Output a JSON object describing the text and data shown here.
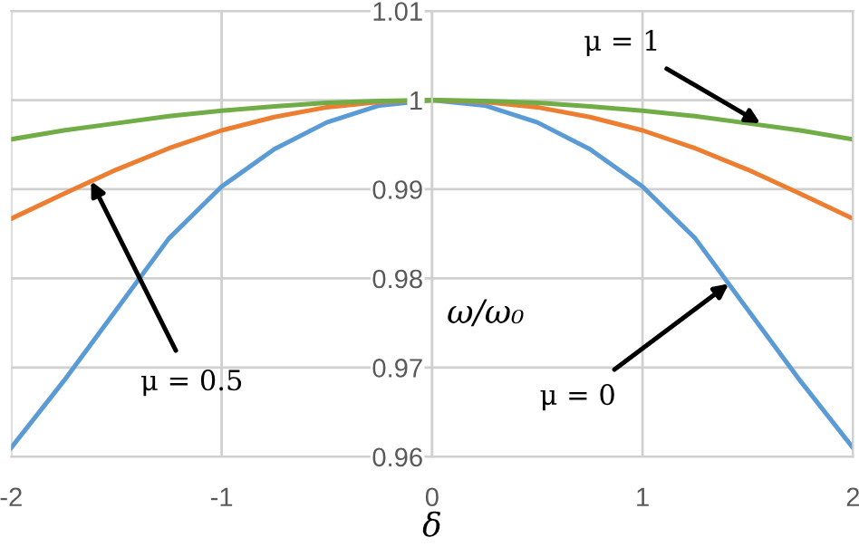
{
  "chart_data": {
    "type": "line",
    "xlabel": "δ",
    "ylabel": "ω/ω₀",
    "x": [
      -2,
      -1.75,
      -1.5,
      -1.25,
      -1,
      -0.75,
      -0.5,
      -0.25,
      0,
      0.25,
      0.5,
      0.75,
      1,
      1.25,
      1.5,
      1.75,
      2
    ],
    "series": [
      {
        "color": "#5b9bd5",
        "values": [
          0.961,
          0.9685,
          0.9765,
          0.9845,
          0.9903,
          0.9945,
          0.9975,
          0.9994,
          1,
          0.9994,
          0.9975,
          0.9945,
          0.9903,
          0.9845,
          0.9765,
          0.9685,
          0.961
        ]
      },
      {
        "color": "#ed7d31",
        "values": [
          0.9867,
          0.9895,
          0.9922,
          0.9946,
          0.9966,
          0.9981,
          0.9992,
          0.9998,
          1,
          0.9998,
          0.9992,
          0.9981,
          0.9966,
          0.9946,
          0.9922,
          0.9895,
          0.9867
        ]
      },
      {
        "color": "#70ad47",
        "values": [
          0.9956,
          0.9966,
          0.9974,
          0.9982,
          0.9988,
          0.9993,
          0.9997,
          0.9999,
          1,
          0.9999,
          0.9997,
          0.9993,
          0.9988,
          0.9982,
          0.9974,
          0.9966,
          0.9956
        ]
      }
    ],
    "xlim": [
      -2,
      2
    ],
    "ylim": [
      0.96,
      1.01
    ],
    "xticks": [
      -2,
      -1,
      0,
      1,
      2
    ],
    "yticks": [
      0.96,
      0.97,
      0.98,
      0.99,
      1,
      1.01
    ],
    "grid": true,
    "legend": false,
    "marker": "none",
    "line_style": "solid",
    "annotations": [
      {
        "text": "μ = 1",
        "x": 1.56,
        "y": 0.9974
      },
      {
        "text": "μ = 0.5",
        "x": -1.62,
        "y": 0.9909
      },
      {
        "text": "μ = 0",
        "x": 1.41,
        "y": 0.9794
      }
    ]
  }
}
